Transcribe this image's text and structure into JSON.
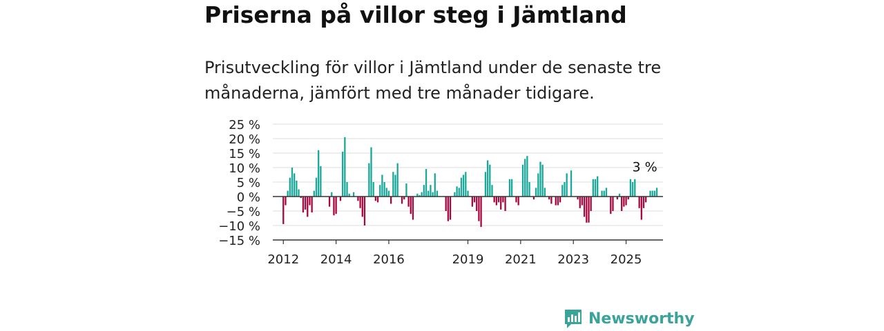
{
  "title": "Priserna på villor steg i Jämtland",
  "subtitle": "Prisutveckling för villor i Jämtland under de senaste tre månaderna, jämfört med tre månader tidigare.",
  "brand": {
    "name": "Newsworthy",
    "icon": "newsworthy-logo-icon",
    "color": "#3aa39a"
  },
  "chart_data": {
    "type": "bar",
    "title": "",
    "xlabel": "",
    "ylabel": "",
    "ylim": [
      -15,
      25
    ],
    "yticks": [
      25,
      20,
      15,
      10,
      5,
      0,
      -5,
      -10,
      -15
    ],
    "ytick_labels": [
      "25 %",
      "20 %",
      "15 %",
      "10 %",
      "5 %",
      "0 %",
      "−10 %",
      "−15 %"
    ],
    "ytick_label_values": [
      25,
      20,
      15,
      10,
      5,
      0,
      -10,
      -15
    ],
    "ytick_labels_all": [
      "25 %",
      "20 %",
      "15 %",
      "10 %",
      "5 %",
      "0 %",
      "−5 %",
      "−10 %",
      "−15 %"
    ],
    "xlim": [
      2011.6,
      2026.4
    ],
    "xticks": [
      2012,
      2014,
      2016,
      2019,
      2021,
      2023,
      2025
    ],
    "xtick_labels": [
      "2012",
      "2014",
      "2016",
      "2019",
      "2021",
      "2023",
      "2025"
    ],
    "grid": true,
    "positive_color": "#17a899",
    "negative_color": "#a8063f",
    "annotation": {
      "text": "3 %",
      "x": 2025.5,
      "y": 3
    },
    "start_year": 2012,
    "values": [
      -9.5,
      -3,
      2,
      6.5,
      10,
      8,
      5.5,
      2.5,
      -0.5,
      -5.5,
      -4.5,
      -7,
      -3,
      -5.5,
      2,
      6.5,
      16,
      10.5,
      0,
      0,
      0,
      -3.5,
      1.5,
      -6.5,
      -6,
      0,
      -1.5,
      15.5,
      20.5,
      5,
      1,
      0,
      1.5,
      0,
      -1.5,
      -4,
      -7,
      -10,
      0,
      11.5,
      17,
      5,
      -1.5,
      -2,
      4,
      7.5,
      5,
      3,
      2,
      -2.5,
      8.5,
      7.5,
      11.5,
      0,
      -2.5,
      -1,
      4.5,
      -3.5,
      -6,
      -8,
      0,
      1,
      0.5,
      1.5,
      4,
      9.5,
      2,
      4,
      1.5,
      8,
      2,
      0,
      0,
      0,
      -5,
      -8.5,
      -8,
      0,
      1.5,
      3.5,
      3,
      6.5,
      7.5,
      8.5,
      2,
      0,
      -3.5,
      -2,
      -5,
      -8.5,
      -10.5,
      0,
      8.5,
      12.5,
      11,
      4,
      -2,
      -3,
      -2,
      -4.5,
      -2,
      -5,
      0,
      6,
      6,
      0,
      -2,
      -3,
      0,
      11,
      13,
      14,
      5,
      0,
      -1,
      3,
      8,
      12,
      11,
      3,
      0,
      -1,
      -2.5,
      0,
      -3,
      -3,
      -2,
      4,
      5,
      8,
      0,
      9,
      0,
      0,
      -1,
      -4,
      -3,
      -7,
      -9,
      -9,
      -5,
      6,
      6,
      7,
      0,
      2,
      2,
      3,
      0,
      -6,
      -5,
      0,
      -1,
      1,
      -5,
      -3.5,
      -3,
      -1,
      6,
      5,
      6,
      0,
      -4,
      -8,
      -4,
      -2,
      0,
      2,
      2,
      2,
      3
    ]
  }
}
